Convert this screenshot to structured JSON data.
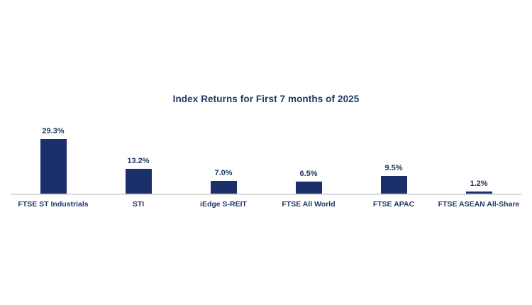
{
  "chart_data": {
    "type": "bar",
    "title": "Index Returns for First 7 months of 2025",
    "categories": [
      "FTSE ST Industrials",
      "STI",
      "iEdge S-REIT",
      "FTSE All World",
      "FTSE APAC",
      "FTSE ASEAN All-Share"
    ],
    "values": [
      29.3,
      13.2,
      7.0,
      6.5,
      9.5,
      1.2
    ],
    "value_labels": [
      "29.3%",
      "13.2%",
      "7.0%",
      "6.5%",
      "9.5%",
      "1.2%"
    ],
    "unit": "%",
    "xlabel": "",
    "ylabel": "",
    "ylim": [
      0,
      30
    ],
    "grid": false,
    "legend": false,
    "colors": {
      "bar": "#1b2f6b",
      "text": "#1f3864",
      "axis_line": "#d9d9d9",
      "background": "#ffffff"
    }
  }
}
